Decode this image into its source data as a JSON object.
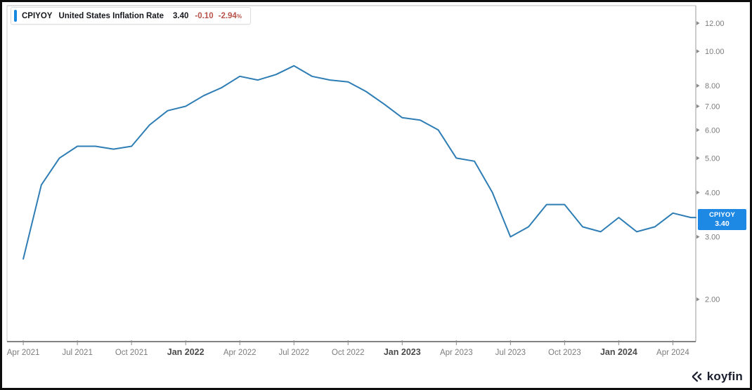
{
  "legend": {
    "symbol": "CPIYOY",
    "name": "United States Inflation Rate",
    "value": "3.40",
    "change": "-0.10",
    "change_pct": "-2.94",
    "pct_sign": "%",
    "accent_color": "#1788e0",
    "change_color": "#b9524a"
  },
  "badge": {
    "symbol": "CPIYOY",
    "value": "3.40",
    "bg": "#1e88e5",
    "anchor_value": 3.4
  },
  "logo": {
    "text": "koyfin",
    "color": "#1a1e2d"
  },
  "chart_data": {
    "type": "line",
    "title": "United States Inflation Rate (CPIYOY)",
    "line_color": "#2e7db5",
    "line_width": 2,
    "y_scale": "log",
    "ylim": [
      1.52,
      13.45
    ],
    "xlim_months": [
      -0.9,
      37.27
    ],
    "grid": false,
    "legend_position": "top-left",
    "axis": {
      "top_color": "#bcbcbc",
      "left_color": "#cccccc",
      "right_color": "#9a9a9a",
      "bottom_color": "#5a5a5a",
      "tick_color": "#8a8a8a",
      "label_color": "#7c7c7c",
      "bold_label_color": "#4b4b4b"
    },
    "y_ticks": [
      {
        "v": 12,
        "label": "12.00"
      },
      {
        "v": 10,
        "label": "10.00"
      },
      {
        "v": 8,
        "label": "8.00"
      },
      {
        "v": 7,
        "label": "7.00"
      },
      {
        "v": 6,
        "label": "6.00"
      },
      {
        "v": 5,
        "label": "5.00"
      },
      {
        "v": 4,
        "label": "4.00"
      },
      {
        "v": 3,
        "label": "3.00"
      },
      {
        "v": 2,
        "label": "2.00"
      }
    ],
    "x_ticks": [
      {
        "label": "Apr 2021",
        "month": 0,
        "bold": false
      },
      {
        "label": "Jul 2021",
        "month": 3,
        "bold": false
      },
      {
        "label": "Oct 2021",
        "month": 6,
        "bold": false
      },
      {
        "label": "Jan 2022",
        "month": 9,
        "bold": true
      },
      {
        "label": "Apr 2022",
        "month": 12,
        "bold": false
      },
      {
        "label": "Jul 2022",
        "month": 15,
        "bold": false
      },
      {
        "label": "Oct 2022",
        "month": 18,
        "bold": false
      },
      {
        "label": "Jan 2023",
        "month": 21,
        "bold": true
      },
      {
        "label": "Apr 2023",
        "month": 24,
        "bold": false
      },
      {
        "label": "Jul 2023",
        "month": 27,
        "bold": false
      },
      {
        "label": "Oct 2023",
        "month": 30,
        "bold": false
      },
      {
        "label": "Jan 2024",
        "month": 33,
        "bold": true
      },
      {
        "label": "Apr 2024",
        "month": 36,
        "bold": false
      }
    ],
    "points": [
      {
        "date": "Mar 2021",
        "value": 2.6
      },
      {
        "date": "Apr 2021",
        "value": 4.2
      },
      {
        "date": "May 2021",
        "value": 5.0
      },
      {
        "date": "Jun 2021",
        "value": 5.4
      },
      {
        "date": "Jul 2021",
        "value": 5.4
      },
      {
        "date": "Aug 2021",
        "value": 5.3
      },
      {
        "date": "Sep 2021",
        "value": 5.4
      },
      {
        "date": "Oct 2021",
        "value": 6.2
      },
      {
        "date": "Nov 2021",
        "value": 6.8
      },
      {
        "date": "Dec 2021",
        "value": 7.0
      },
      {
        "date": "Jan 2022",
        "value": 7.5
      },
      {
        "date": "Feb 2022",
        "value": 7.9
      },
      {
        "date": "Mar 2022",
        "value": 8.5
      },
      {
        "date": "Apr 2022",
        "value": 8.3
      },
      {
        "date": "May 2022",
        "value": 8.6
      },
      {
        "date": "Jun 2022",
        "value": 9.1
      },
      {
        "date": "Jul 2022",
        "value": 8.5
      },
      {
        "date": "Aug 2022",
        "value": 8.3
      },
      {
        "date": "Sep 2022",
        "value": 8.2
      },
      {
        "date": "Oct 2022",
        "value": 7.7
      },
      {
        "date": "Nov 2022",
        "value": 7.1
      },
      {
        "date": "Dec 2022",
        "value": 6.5
      },
      {
        "date": "Jan 2023",
        "value": 6.4
      },
      {
        "date": "Feb 2023",
        "value": 6.0
      },
      {
        "date": "Mar 2023",
        "value": 5.0
      },
      {
        "date": "Apr 2023",
        "value": 4.9
      },
      {
        "date": "May 2023",
        "value": 4.0
      },
      {
        "date": "Jun 2023",
        "value": 3.0
      },
      {
        "date": "Jul 2023",
        "value": 3.2
      },
      {
        "date": "Aug 2023",
        "value": 3.7
      },
      {
        "date": "Sep 2023",
        "value": 3.7
      },
      {
        "date": "Oct 2023",
        "value": 3.2
      },
      {
        "date": "Nov 2023",
        "value": 3.1
      },
      {
        "date": "Dec 2023",
        "value": 3.4
      },
      {
        "date": "Jan 2024",
        "value": 3.1
      },
      {
        "date": "Feb 2024",
        "value": 3.2
      },
      {
        "date": "Mar 2024",
        "value": 3.5
      },
      {
        "date": "Apr 2024",
        "value": 3.4
      }
    ]
  }
}
